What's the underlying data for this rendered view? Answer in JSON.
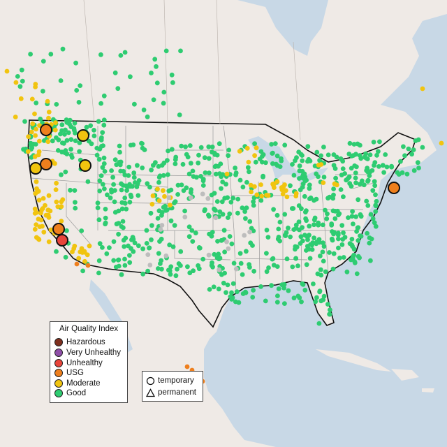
{
  "legend": {
    "title": "Air Quality Index",
    "items": [
      {
        "label": "Hazardous",
        "color": "#7e2f1e"
      },
      {
        "label": "Very Unhealthy",
        "color": "#8f4fa8"
      },
      {
        "label": "Unhealthy",
        "color": "#e8443a"
      },
      {
        "label": "USG",
        "color": "#ee7f1d"
      },
      {
        "label": "Moderate",
        "color": "#f1c40f"
      },
      {
        "label": "Good",
        "color": "#2ecc71"
      }
    ]
  },
  "monitor_types": {
    "items": [
      {
        "label": "temporary",
        "shape": "circle-icon"
      },
      {
        "label": "permanent",
        "shape": "triangle-icon"
      }
    ]
  },
  "colors": {
    "water": "#c8d8e6",
    "land": "#efeae6",
    "border": "#111111",
    "state_line": "#9a9a9a",
    "no_data": "#bdbdbd"
  }
}
